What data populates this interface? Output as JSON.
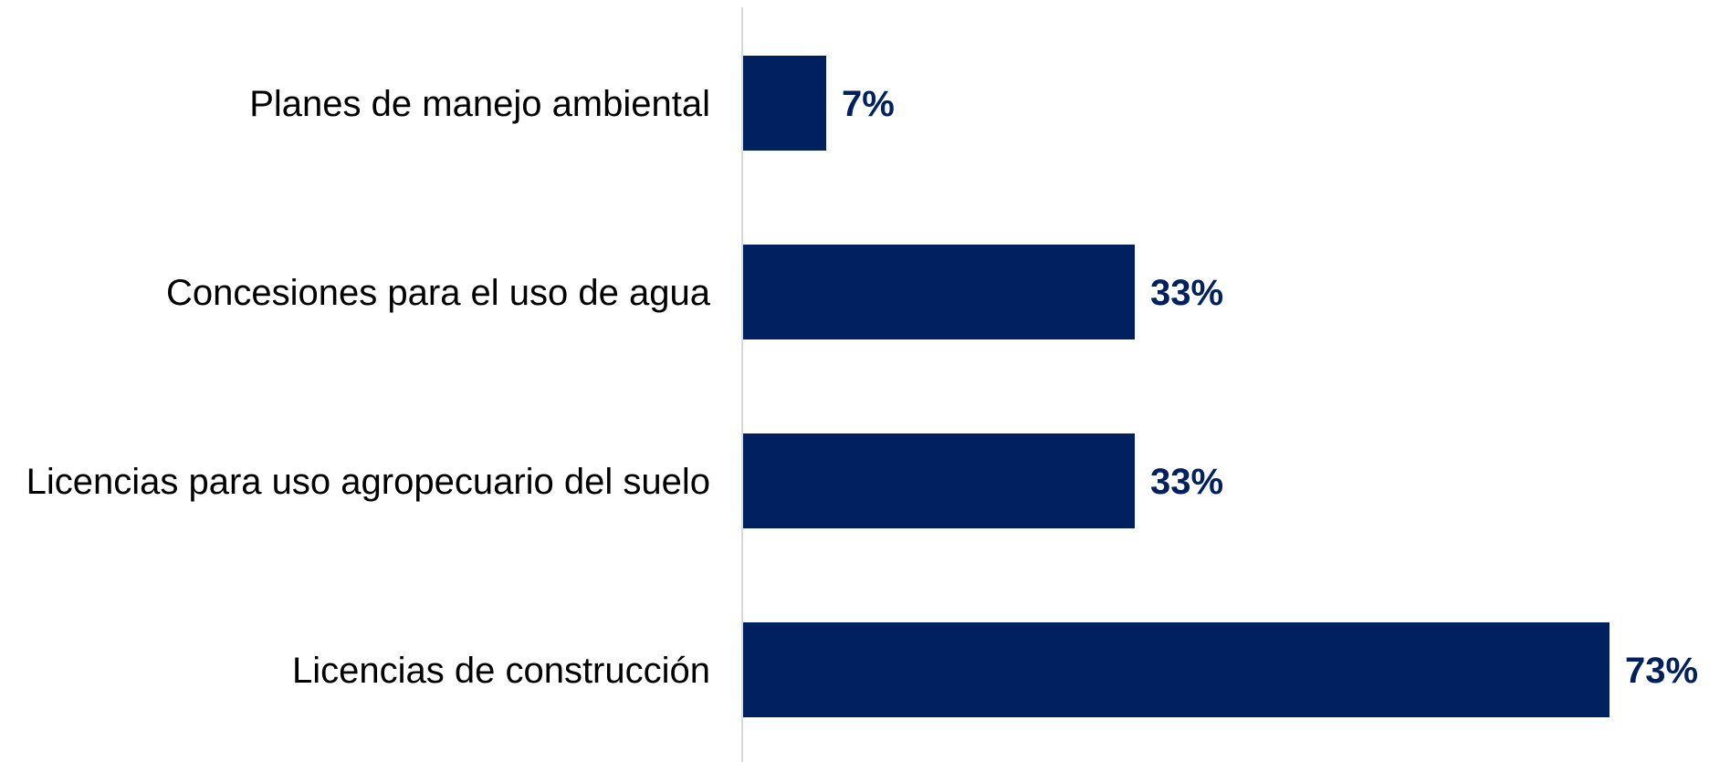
{
  "chart_data": {
    "type": "bar",
    "orientation": "horizontal",
    "title": "",
    "xlabel": "",
    "ylabel": "",
    "categories": [
      "Planes de manejo ambiental",
      "Concesiones para el uso de agua",
      "Licencias para uso agropecuario del suelo ",
      "Licencias de construcción"
    ],
    "values": [
      7,
      33,
      33,
      73
    ],
    "value_labels": [
      "7%",
      "33%",
      "33%",
      "73%"
    ],
    "unit": "%",
    "xlim": [
      0,
      73
    ],
    "grid": false,
    "legend": "none",
    "colors": {
      "bar": "#002060",
      "value_label": "#002060",
      "axis": "#d9d9d9",
      "category_label": "#000000"
    }
  }
}
